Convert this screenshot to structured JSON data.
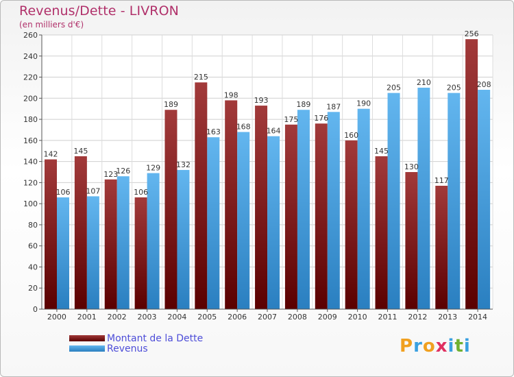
{
  "page": {
    "title": "Revenus/Dette - LIVRON",
    "subtitle": "(en milliers d'€)"
  },
  "colors": {
    "title": "#b0306a",
    "debt_top": "#a23a3a",
    "debt_bottom": "#5a0000",
    "revenue_top": "#63b6ef",
    "revenue_bottom": "#2a7fc0",
    "legend_text": "#4d4dd8"
  },
  "chart_data": {
    "type": "bar",
    "categories": [
      "2000",
      "2001",
      "2002",
      "2003",
      "2004",
      "2005",
      "2006",
      "2007",
      "2008",
      "2009",
      "2010",
      "2011",
      "2012",
      "2013",
      "2014"
    ],
    "series": [
      {
        "name": "Montant de la Dette",
        "values": [
          142,
          145,
          123,
          106,
          189,
          215,
          198,
          193,
          175,
          176,
          160,
          145,
          130,
          117,
          256
        ]
      },
      {
        "name": "Revenus",
        "values": [
          106,
          107,
          126,
          129,
          132,
          163,
          168,
          164,
          189,
          187,
          190,
          205,
          210,
          205,
          208
        ]
      }
    ],
    "ylim": [
      0,
      260
    ],
    "yticks": [
      0,
      20,
      40,
      60,
      80,
      100,
      120,
      140,
      160,
      180,
      200,
      220,
      240,
      260
    ],
    "grid": true,
    "legend_placement": "bottom-left"
  },
  "logo": {
    "letters": [
      "P",
      "r",
      "o",
      "x",
      "i",
      "t",
      "i"
    ],
    "colors": [
      "#f0a020",
      "#3aa0e0",
      "#f0a020",
      "#e03060",
      "#3aa0e0",
      "#70b030",
      "#3aa0e0"
    ]
  }
}
